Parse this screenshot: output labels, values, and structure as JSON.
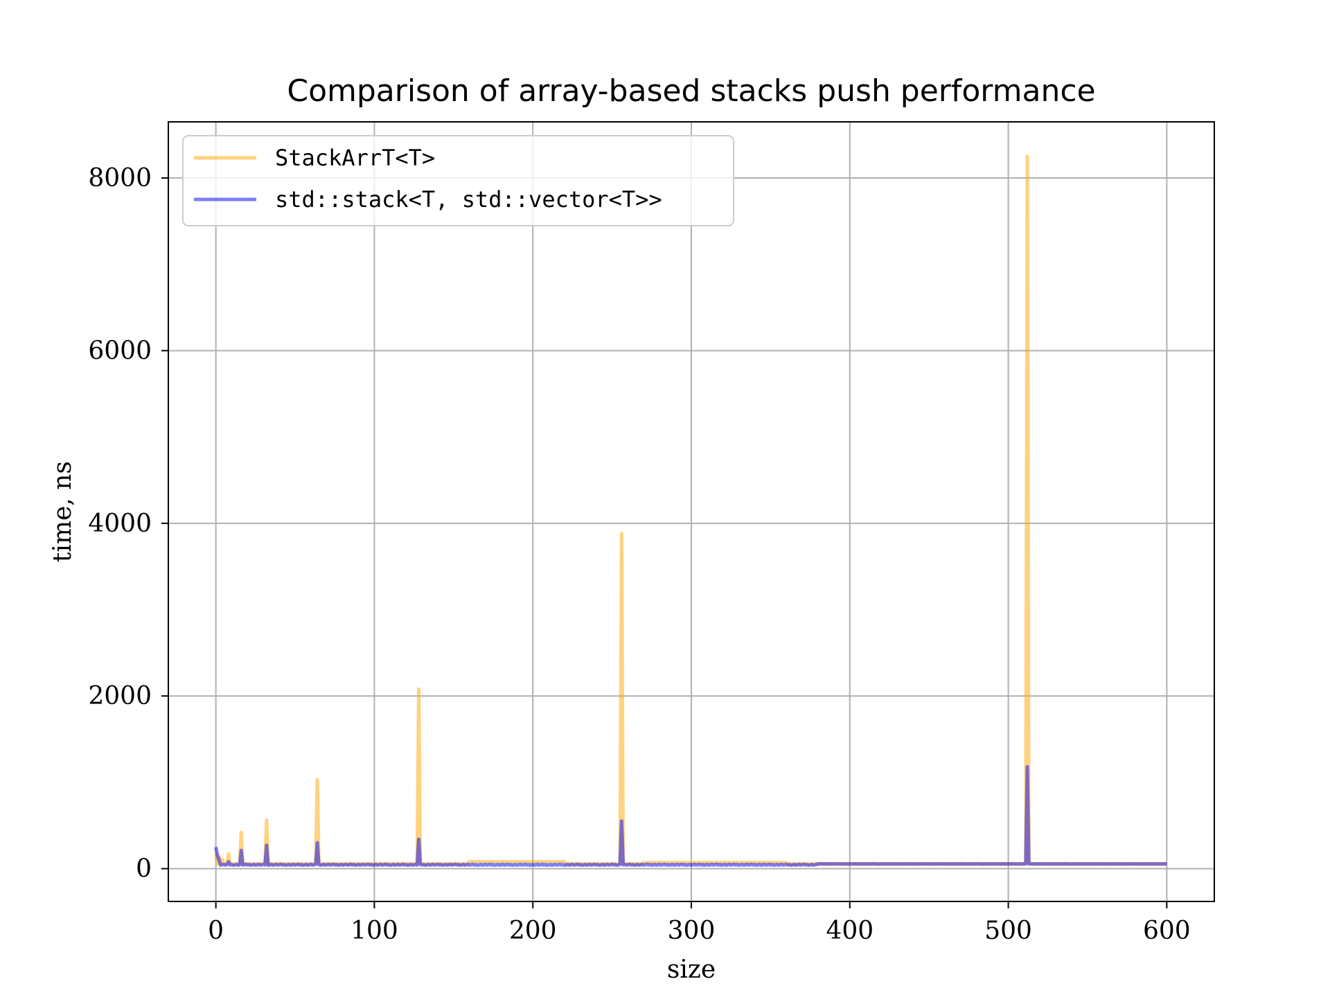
{
  "chart_data": {
    "type": "line",
    "title": "Comparison of array-based stacks push performance",
    "xlabel": "size",
    "ylabel": "time, ns",
    "xlim": [
      -30,
      630
    ],
    "ylim": [
      -380,
      8650
    ],
    "xticks": [
      0,
      100,
      200,
      300,
      400,
      500,
      600
    ],
    "yticks": [
      0,
      2000,
      4000,
      6000,
      8000
    ],
    "xtick_labels": [
      "0",
      "100",
      "200",
      "300",
      "400",
      "500",
      "600"
    ],
    "ytick_labels": [
      "0",
      "2000",
      "4000",
      "6000",
      "8000"
    ],
    "grid": true,
    "legend_position": "upper-left",
    "x_domain": [
      0,
      600
    ],
    "series": [
      {
        "name": "StackArrT<T>",
        "color": "#ffa500",
        "opacity": 0.5,
        "baseline": 55,
        "peaks": [
          [
            0,
            180
          ],
          [
            2,
            130
          ],
          [
            4,
            110
          ],
          [
            8,
            170
          ],
          [
            16,
            420
          ],
          [
            32,
            560
          ],
          [
            64,
            1030
          ],
          [
            128,
            2080
          ],
          [
            256,
            3880
          ],
          [
            512,
            8250
          ]
        ],
        "segments": [
          [
            160,
            220,
            80
          ],
          [
            270,
            360,
            70
          ]
        ]
      },
      {
        "name": "std::stack<T, std::vector<T>>",
        "color": "#0000ff",
        "opacity": 0.5,
        "baseline": 45,
        "peaks": [
          [
            0,
            250
          ],
          [
            1,
            160
          ],
          [
            2,
            100
          ],
          [
            8,
            80
          ],
          [
            16,
            210
          ],
          [
            32,
            270
          ],
          [
            64,
            300
          ],
          [
            128,
            340
          ],
          [
            256,
            550
          ],
          [
            512,
            1180
          ]
        ],
        "segments": [
          [
            380,
            600,
            55
          ]
        ]
      }
    ]
  }
}
